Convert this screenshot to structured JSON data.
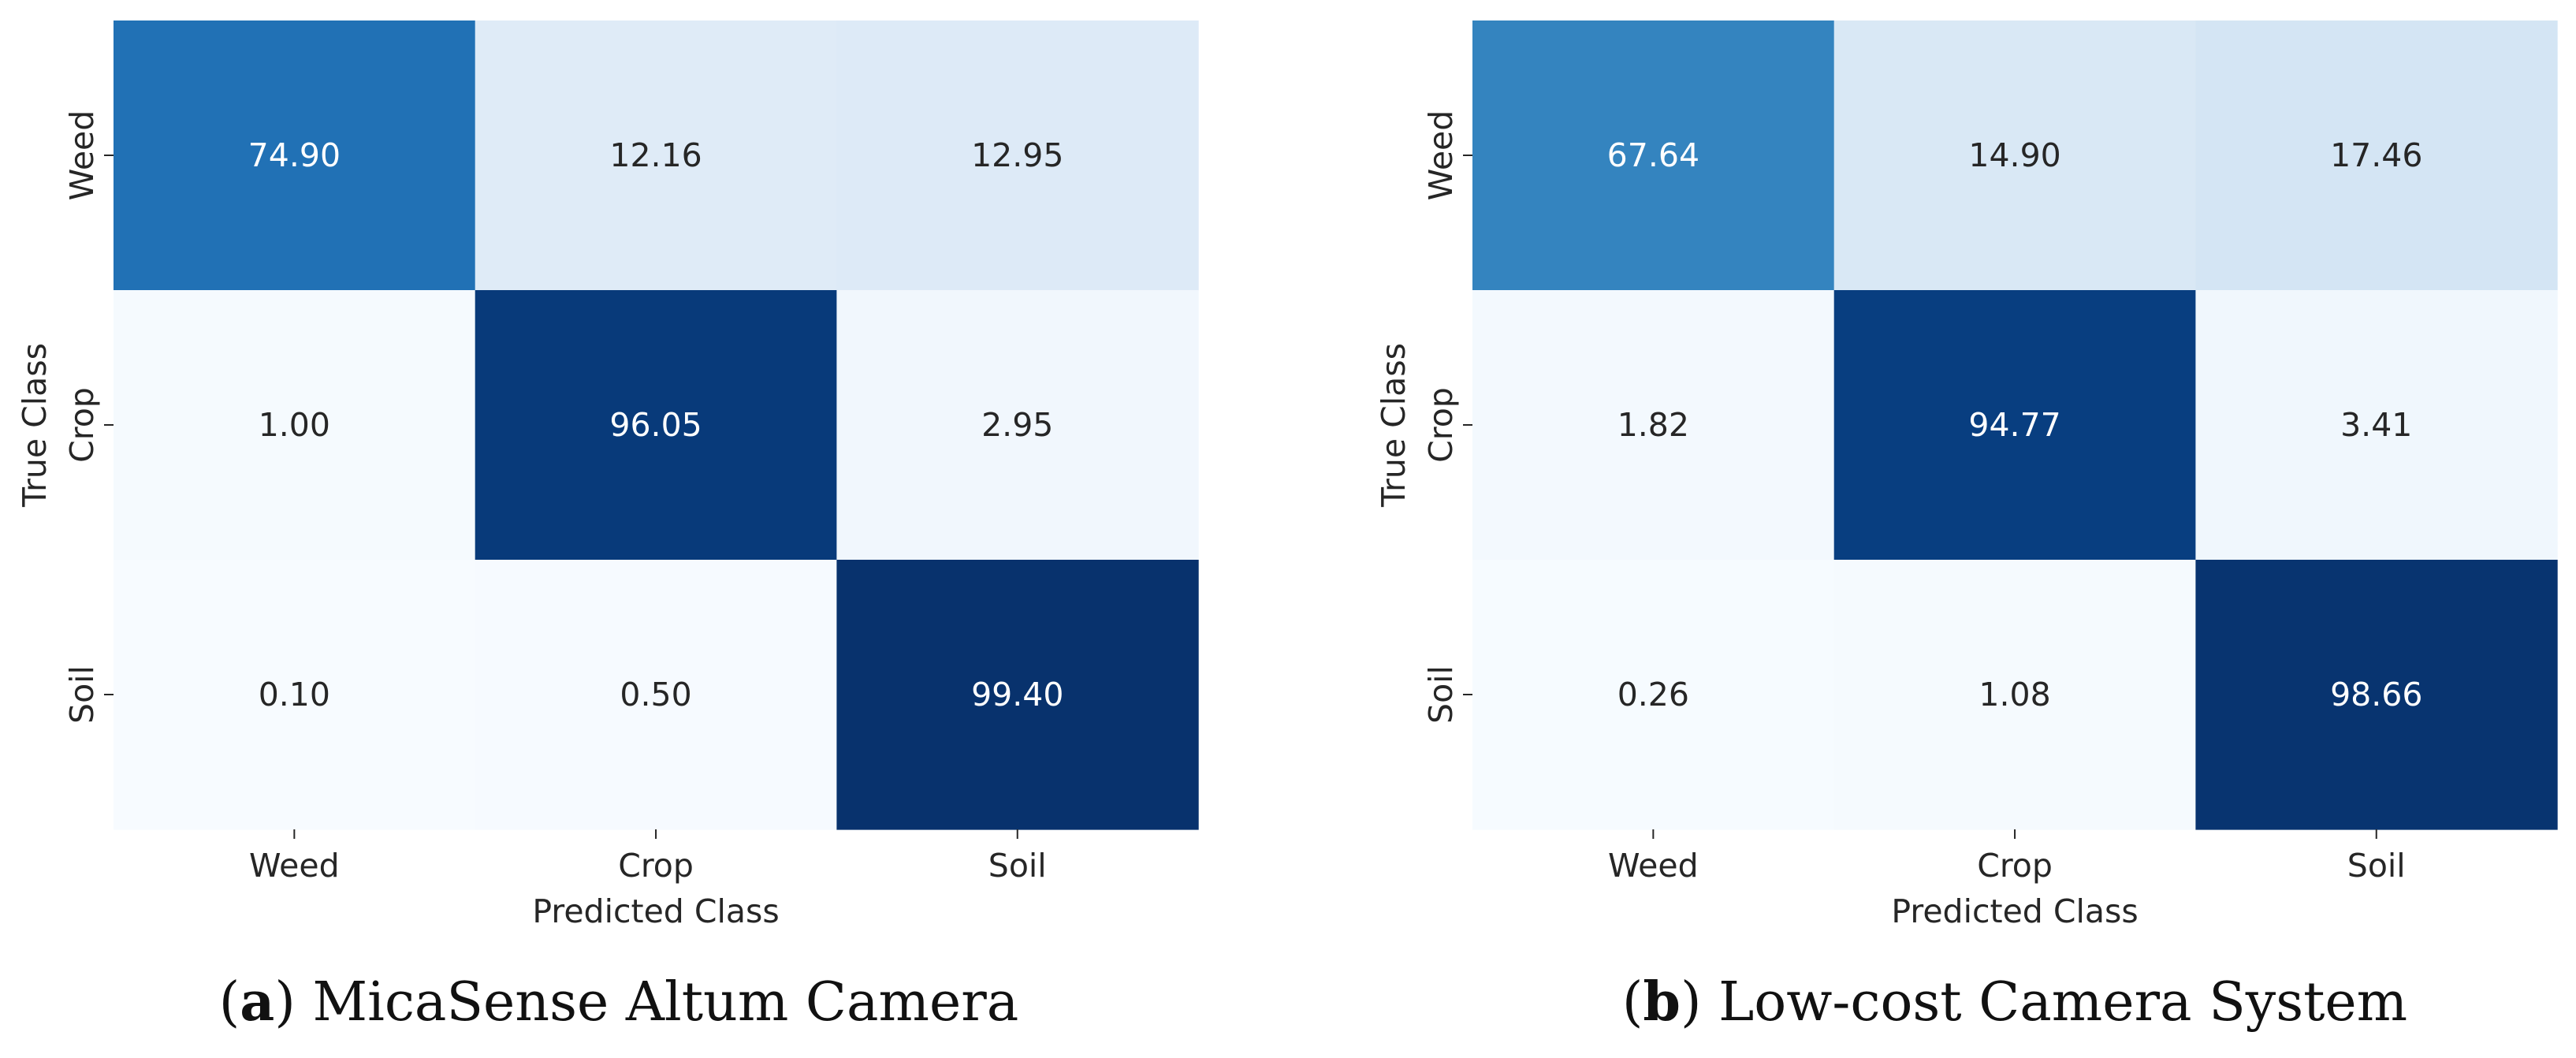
{
  "chart_data": [
    {
      "type": "heatmap",
      "panel_letter": "a",
      "caption": "MicaSense Altum Camera",
      "xlabel": "Predicted Class",
      "ylabel": "True Class",
      "x_categories": [
        "Weed",
        "Crop",
        "Soil"
      ],
      "y_categories": [
        "Weed",
        "Crop",
        "Soil"
      ],
      "values": [
        [
          74.9,
          12.16,
          12.95
        ],
        [
          1.0,
          96.05,
          2.95
        ],
        [
          0.1,
          0.5,
          99.4
        ]
      ],
      "value_labels": [
        [
          "74.90",
          "12.16",
          "12.95"
        ],
        [
          "1.00",
          "96.05",
          "2.95"
        ],
        [
          "0.10",
          "0.50",
          "99.40"
        ]
      ],
      "colormap": "Blues",
      "value_range": [
        0,
        100
      ],
      "colorbar": false
    },
    {
      "type": "heatmap",
      "panel_letter": "b",
      "caption": "Low-cost Camera System",
      "xlabel": "Predicted Class",
      "ylabel": "True Class",
      "x_categories": [
        "Weed",
        "Crop",
        "Soil"
      ],
      "y_categories": [
        "Weed",
        "Crop",
        "Soil"
      ],
      "values": [
        [
          67.64,
          14.9,
          17.46
        ],
        [
          1.82,
          94.77,
          3.41
        ],
        [
          0.26,
          1.08,
          98.66
        ]
      ],
      "value_labels": [
        [
          "67.64",
          "14.90",
          "17.46"
        ],
        [
          "1.82",
          "94.77",
          "3.41"
        ],
        [
          "0.26",
          "1.08",
          "98.66"
        ]
      ],
      "colormap": "Blues",
      "value_range": [
        0,
        100
      ],
      "colorbar": false
    }
  ],
  "colors": {
    "blues_scale": [
      "#f7fbff",
      "#deebf7",
      "#c6dbef",
      "#9ecae1",
      "#6baed6",
      "#4292c6",
      "#2171b5",
      "#08519c",
      "#08306b"
    ],
    "text_dark": "#262626",
    "text_light": "#ffffff",
    "axis_text": "#262626",
    "caption_text": "#111111"
  }
}
